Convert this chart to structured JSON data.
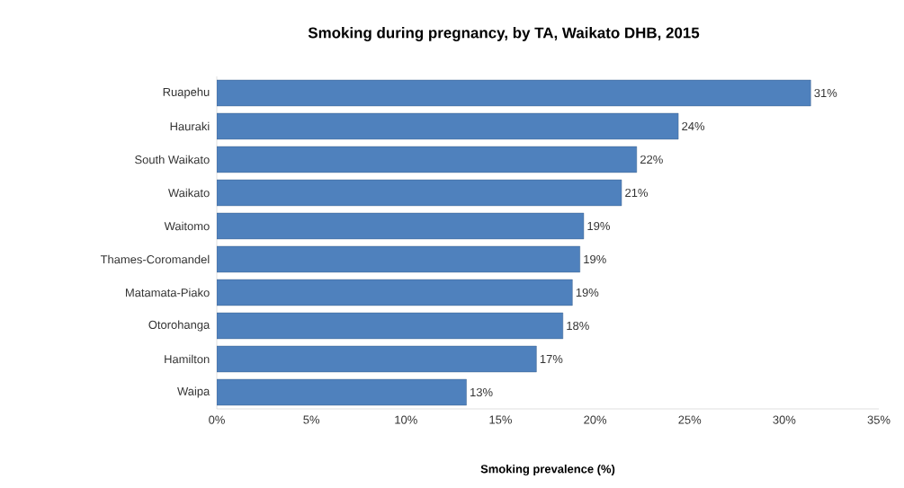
{
  "chart_data": {
    "type": "bar",
    "orientation": "horizontal",
    "title": "Smoking during pregnancy, by TA, Waikato DHB, 2015",
    "xlabel": "Smoking prevalence (%)",
    "categories": [
      "Ruapehu",
      "Hauraki",
      "South Waikato",
      "Waikato",
      "Waitomo",
      "Thames-Coromandel",
      "Matamata-Piako",
      "Otorohanga",
      "Hamilton",
      "Waipa"
    ],
    "values": [
      31.4,
      24.4,
      22.2,
      21.4,
      19.4,
      19.2,
      18.8,
      18.3,
      16.9,
      13.2
    ],
    "value_labels": [
      "31%",
      "24%",
      "22%",
      "21%",
      "19%",
      "19%",
      "19%",
      "18%",
      "17%",
      "13%"
    ],
    "color": "#4f81bd",
    "xlim": [
      0,
      35
    ],
    "xticks": [
      {
        "value": 0,
        "label": "0%"
      },
      {
        "value": 5,
        "label": "5%"
      },
      {
        "value": 10,
        "label": "10%"
      },
      {
        "value": 15,
        "label": "15%"
      },
      {
        "value": 20,
        "label": "20%"
      },
      {
        "value": 25,
        "label": "25%"
      },
      {
        "value": 30,
        "label": "30%"
      },
      {
        "value": 35,
        "label": "35%"
      }
    ]
  }
}
